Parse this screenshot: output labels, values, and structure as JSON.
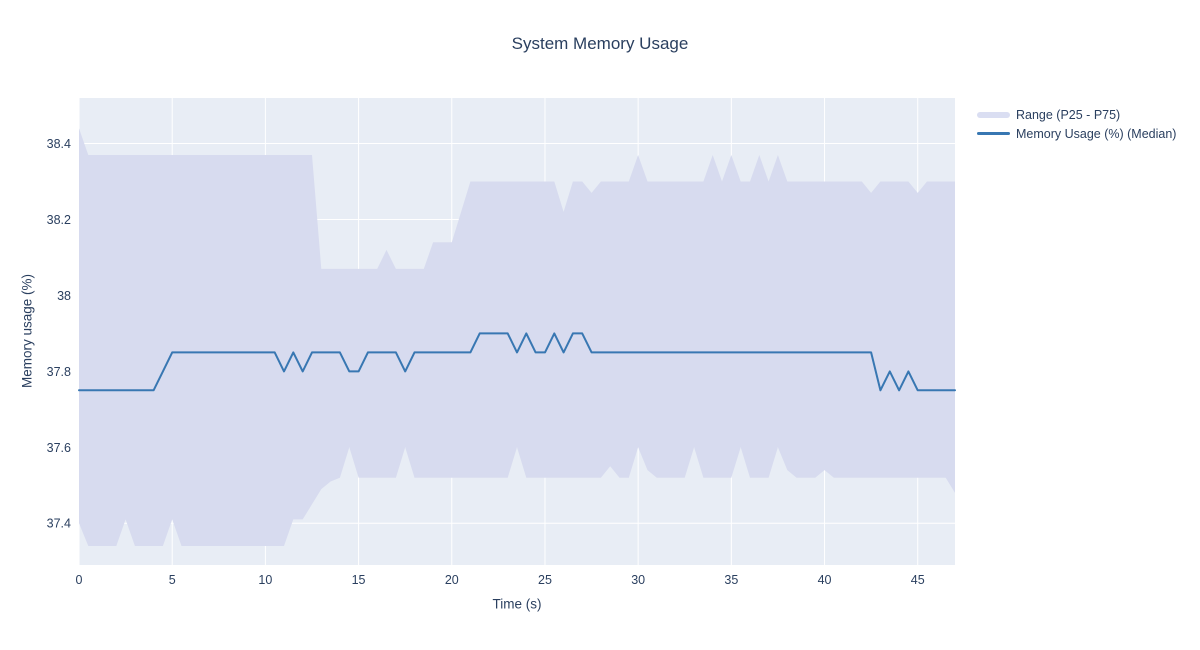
{
  "title": "System Memory Usage",
  "x_axis": {
    "label": "Time (s)"
  },
  "y_axis": {
    "label": "Memory usage (%)"
  },
  "legend": {
    "position": "top-right",
    "items": [
      {
        "label": "Range (P25 - P75)",
        "type": "band",
        "swatch_color": "#dadef2"
      },
      {
        "label": "Memory Usage (%) (Median)",
        "type": "line",
        "swatch_color": "#3877b2"
      }
    ]
  },
  "colors": {
    "plot_bg": "#e8edf5",
    "band_fill": "#d7dbef",
    "median_line": "#3877b2",
    "grid": "#ffffff",
    "text": "#2a3f5f",
    "page_bg": "#ffffff"
  },
  "chart_data": {
    "type": "line",
    "title": "System Memory Usage",
    "xlabel": "Time (s)",
    "ylabel": "Memory usage (%)",
    "xlim": [
      0,
      47
    ],
    "ylim": [
      37.29,
      38.52
    ],
    "xticks": [
      0,
      5,
      10,
      15,
      20,
      25,
      30,
      35,
      40,
      45
    ],
    "yticks": [
      37.4,
      37.6,
      37.8,
      38,
      38.2,
      38.4
    ],
    "grid": true,
    "legend_position": "top-right",
    "band": {
      "label": "Range (P25 - P75)",
      "upper": "P75",
      "lower": "P25"
    },
    "x": [
      0,
      0.5,
      1,
      1.5,
      2,
      2.5,
      3,
      3.5,
      4,
      4.5,
      5,
      5.5,
      6,
      6.5,
      7,
      7.5,
      8,
      8.5,
      9,
      9.5,
      10,
      10.5,
      11,
      11.5,
      12,
      12.5,
      13,
      13.5,
      14,
      14.5,
      15,
      15.5,
      16,
      16.5,
      17,
      17.5,
      18,
      18.5,
      19,
      19.5,
      20,
      20.5,
      21,
      21.5,
      22,
      22.5,
      23,
      23.5,
      24,
      24.5,
      25,
      25.5,
      26,
      26.5,
      27,
      27.5,
      28,
      28.5,
      29,
      29.5,
      30,
      30.5,
      31,
      31.5,
      32,
      32.5,
      33,
      33.5,
      34,
      34.5,
      35,
      35.5,
      36,
      36.5,
      37,
      37.5,
      38,
      38.5,
      39,
      39.5,
      40,
      40.5,
      41,
      41.5,
      42,
      42.5,
      43,
      43.5,
      44,
      44.5,
      45,
      45.5,
      46,
      46.5,
      47
    ],
    "series": [
      {
        "name": "Memory Usage (%) (Median)",
        "values": [
          37.75,
          37.75,
          37.75,
          37.75,
          37.75,
          37.75,
          37.75,
          37.75,
          37.75,
          37.8,
          37.85,
          37.85,
          37.85,
          37.85,
          37.85,
          37.85,
          37.85,
          37.85,
          37.85,
          37.85,
          37.85,
          37.85,
          37.8,
          37.85,
          37.8,
          37.85,
          37.85,
          37.85,
          37.85,
          37.8,
          37.8,
          37.85,
          37.85,
          37.85,
          37.85,
          37.8,
          37.85,
          37.85,
          37.85,
          37.85,
          37.85,
          37.85,
          37.85,
          37.9,
          37.9,
          37.9,
          37.9,
          37.85,
          37.9,
          37.85,
          37.85,
          37.9,
          37.85,
          37.9,
          37.9,
          37.85,
          37.85,
          37.85,
          37.85,
          37.85,
          37.85,
          37.85,
          37.85,
          37.85,
          37.85,
          37.85,
          37.85,
          37.85,
          37.85,
          37.85,
          37.85,
          37.85,
          37.85,
          37.85,
          37.85,
          37.85,
          37.85,
          37.85,
          37.85,
          37.85,
          37.85,
          37.85,
          37.85,
          37.85,
          37.85,
          37.85,
          37.75,
          37.8,
          37.75,
          37.8,
          37.75,
          37.75,
          37.75,
          37.75,
          37.75
        ]
      },
      {
        "name": "P75",
        "values": [
          38.44,
          38.37,
          38.37,
          38.37,
          38.37,
          38.37,
          38.37,
          38.37,
          38.37,
          38.37,
          38.37,
          38.37,
          38.37,
          38.37,
          38.37,
          38.37,
          38.37,
          38.37,
          38.37,
          38.37,
          38.37,
          38.37,
          38.37,
          38.37,
          38.37,
          38.37,
          38.07,
          38.07,
          38.07,
          38.07,
          38.07,
          38.07,
          38.07,
          38.12,
          38.07,
          38.07,
          38.07,
          38.07,
          38.14,
          38.14,
          38.14,
          38.22,
          38.3,
          38.3,
          38.3,
          38.3,
          38.3,
          38.3,
          38.3,
          38.3,
          38.3,
          38.3,
          38.22,
          38.3,
          38.3,
          38.27,
          38.3,
          38.3,
          38.3,
          38.3,
          38.37,
          38.3,
          38.3,
          38.3,
          38.3,
          38.3,
          38.3,
          38.3,
          38.37,
          38.3,
          38.37,
          38.3,
          38.3,
          38.37,
          38.3,
          38.37,
          38.3,
          38.3,
          38.3,
          38.3,
          38.3,
          38.3,
          38.3,
          38.3,
          38.3,
          38.27,
          38.3,
          38.3,
          38.3,
          38.3,
          38.27,
          38.3,
          38.3,
          38.3,
          38.3
        ]
      },
      {
        "name": "P25",
        "values": [
          37.4,
          37.34,
          37.34,
          37.34,
          37.34,
          37.41,
          37.34,
          37.34,
          37.34,
          37.34,
          37.41,
          37.34,
          37.34,
          37.34,
          37.34,
          37.34,
          37.34,
          37.34,
          37.34,
          37.34,
          37.34,
          37.34,
          37.34,
          37.41,
          37.41,
          37.45,
          37.49,
          37.51,
          37.52,
          37.6,
          37.52,
          37.52,
          37.52,
          37.52,
          37.52,
          37.6,
          37.52,
          37.52,
          37.52,
          37.52,
          37.52,
          37.52,
          37.52,
          37.52,
          37.52,
          37.52,
          37.52,
          37.6,
          37.52,
          37.52,
          37.52,
          37.52,
          37.52,
          37.52,
          37.52,
          37.52,
          37.52,
          37.55,
          37.52,
          37.52,
          37.6,
          37.54,
          37.52,
          37.52,
          37.52,
          37.52,
          37.6,
          37.52,
          37.52,
          37.52,
          37.52,
          37.6,
          37.52,
          37.52,
          37.52,
          37.6,
          37.54,
          37.52,
          37.52,
          37.52,
          37.54,
          37.52,
          37.52,
          37.52,
          37.52,
          37.52,
          37.52,
          37.52,
          37.52,
          37.52,
          37.52,
          37.52,
          37.52,
          37.52,
          37.48
        ]
      }
    ]
  }
}
